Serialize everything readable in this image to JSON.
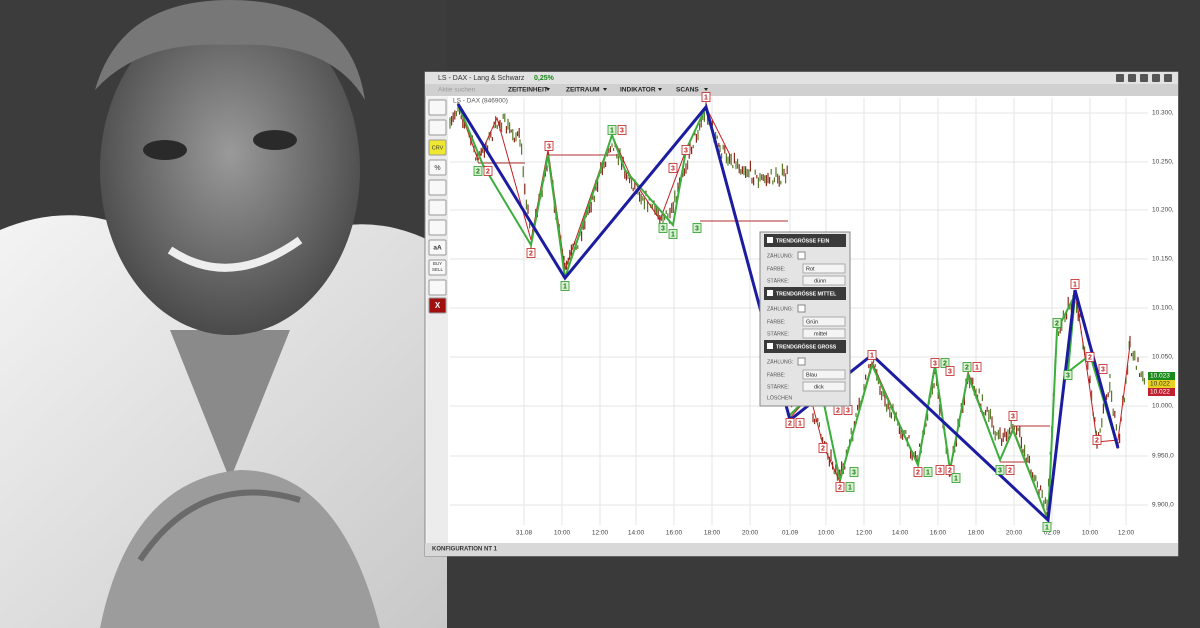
{
  "window": {
    "title": "LS - DAX - Lang & Schwarz",
    "change": "0,25%",
    "search": "Aktie suchen",
    "menus": [
      "ZEITEINHEIT",
      "ZEITRAUM",
      "INDIKATOR",
      "SCANS"
    ],
    "instrument": "LS - DAX (846900)"
  },
  "toolbar": [
    "CRV",
    "%",
    "aA",
    "BUY",
    "SELL",
    "X"
  ],
  "chart": {
    "y_labels": [
      "10.300,",
      "10.250,",
      "10.200,",
      "10.150,",
      "10.100,",
      "10.050,",
      "10.000,",
      "9.950,0",
      "9.900,0"
    ],
    "x_labels": [
      "31.08",
      "10:00",
      "12:00",
      "14:00",
      "16:00",
      "18:00",
      "20:00",
      "01.09",
      "10:00",
      "12:00",
      "14:00",
      "16:00",
      "18:00",
      "20:00",
      "02.09",
      "10:00",
      "12:00"
    ],
    "price_tags": [
      "10.023",
      "10.022",
      "10.022"
    ],
    "markers": [
      "1",
      "3",
      "2",
      "2",
      "1",
      "3",
      "3",
      "3",
      "3",
      "1",
      "3",
      "2",
      "1",
      "2",
      "1",
      "1",
      "2",
      "3",
      "2",
      "3",
      "2",
      "1",
      "2",
      "1",
      "3",
      "2",
      "3",
      "2",
      "1",
      "3",
      "2",
      "1",
      "3",
      "2",
      "3",
      "1",
      "1",
      "2",
      "2",
      "3",
      "3",
      "2"
    ]
  },
  "panel": {
    "sections": [
      {
        "title": "TRENDGRÖSSE FEIN",
        "count_label": "ZÄHLUNG:",
        "color_label": "FARBE:",
        "color": "Rot",
        "width_label": "STÄRKE:",
        "width": "dünn"
      },
      {
        "title": "TRENDGRÖSSE MITTEL",
        "count_label": "ZÄHLUNG:",
        "color_label": "FARBE:",
        "color": "Grün",
        "width_label": "STÄRKE:",
        "width": "mittel"
      },
      {
        "title": "TRENDGRÖSSE GROSS",
        "count_label": "ZÄHLUNG:",
        "color_label": "FARBE:",
        "color": "Blau",
        "width_label": "STÄRKE:",
        "width": "dick"
      }
    ],
    "delete": "LÖSCHEN"
  },
  "status": {
    "config": "KONFIGURATION",
    "layout": "NT 1"
  }
}
